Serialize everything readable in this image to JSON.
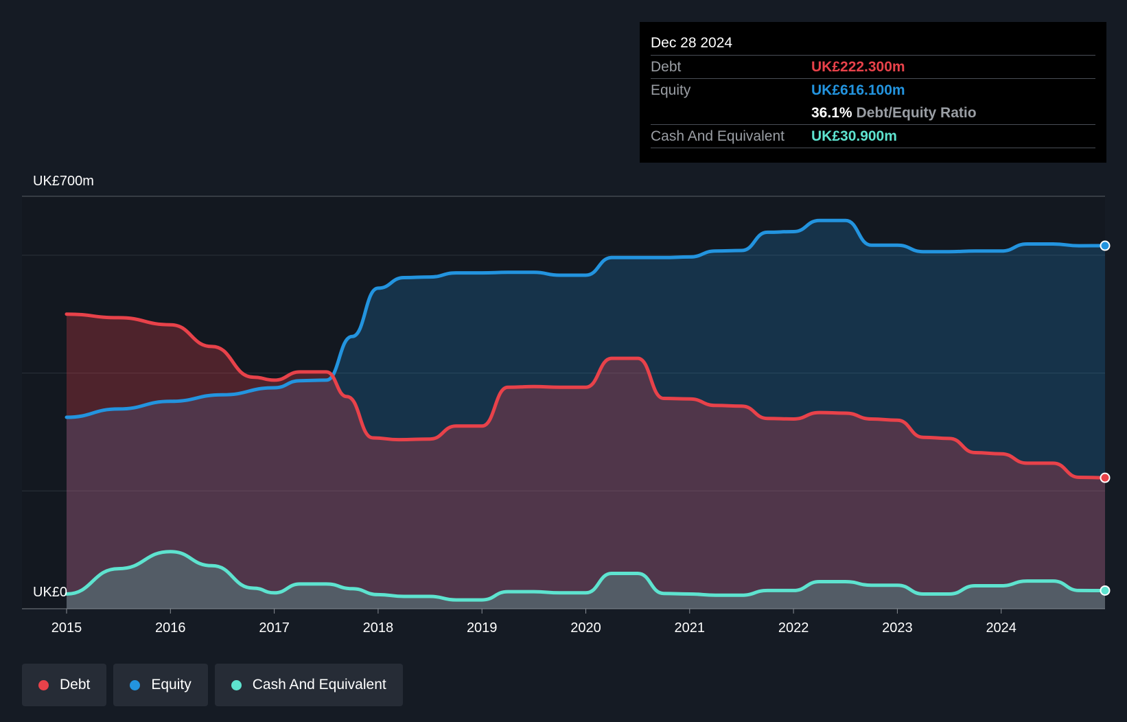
{
  "chart_data": {
    "type": "area",
    "title": "",
    "xlabel": "",
    "ylabel": "",
    "ylim": [
      0,
      700
    ],
    "y_tick_labels": [
      "UK£700m",
      "UK£0"
    ],
    "x_tick_labels": [
      "2015",
      "2016",
      "2017",
      "2018",
      "2019",
      "2020",
      "2021",
      "2022",
      "2023",
      "2024"
    ],
    "x_ticks": [
      2015,
      2016,
      2017,
      2018,
      2019,
      2020,
      2021,
      2022,
      2023,
      2024
    ],
    "xlim": [
      2015,
      2025
    ],
    "grid": true,
    "legend_position": "bottom-left",
    "series": [
      {
        "name": "Debt",
        "color": "#e8424a",
        "x": [
          2015.0,
          2015.5,
          2016.0,
          2016.4,
          2016.8,
          2017.0,
          2017.25,
          2017.5,
          2017.7,
          2017.95,
          2018.2,
          2018.5,
          2018.75,
          2019.0,
          2019.25,
          2019.5,
          2019.75,
          2020.0,
          2020.25,
          2020.5,
          2020.75,
          2021.0,
          2021.25,
          2021.5,
          2021.75,
          2022.0,
          2022.25,
          2022.5,
          2022.75,
          2023.0,
          2023.25,
          2023.5,
          2023.75,
          2024.0,
          2024.25,
          2024.5,
          2024.75,
          2025.0
        ],
        "y": [
          500,
          494,
          482,
          445,
          393,
          388,
          402,
          402,
          360,
          290,
          287,
          288,
          310,
          310,
          376,
          377,
          376,
          376,
          425,
          425,
          357,
          356,
          345,
          344,
          323,
          322,
          333,
          332,
          322,
          320,
          291,
          289,
          265,
          263,
          247,
          247,
          223,
          222.3
        ]
      },
      {
        "name": "Equity",
        "color": "#2394df",
        "x": [
          2015.0,
          2015.5,
          2016.0,
          2016.5,
          2017.0,
          2017.25,
          2017.5,
          2017.75,
          2018.0,
          2018.25,
          2018.5,
          2018.75,
          2019.0,
          2019.25,
          2019.5,
          2019.75,
          2020.0,
          2020.25,
          2020.5,
          2020.75,
          2021.0,
          2021.25,
          2021.5,
          2021.75,
          2022.0,
          2022.25,
          2022.5,
          2022.75,
          2023.0,
          2023.25,
          2023.5,
          2023.75,
          2024.0,
          2024.25,
          2024.5,
          2024.75,
          2025.0
        ],
        "y": [
          325,
          339,
          352,
          363,
          375,
          387,
          388,
          462,
          544,
          562,
          563,
          570,
          570,
          571,
          571,
          566,
          566,
          596,
          596,
          596,
          597,
          607,
          608,
          639,
          640,
          659,
          659,
          617,
          617,
          606,
          606,
          607,
          607,
          619,
          619,
          616,
          616.1
        ]
      },
      {
        "name": "Cash And Equivalent",
        "color": "#5ee3cf",
        "x": [
          2015.0,
          2015.5,
          2016.0,
          2016.4,
          2016.8,
          2017.0,
          2017.25,
          2017.5,
          2017.75,
          2018.0,
          2018.25,
          2018.5,
          2018.75,
          2019.0,
          2019.25,
          2019.5,
          2019.75,
          2020.0,
          2020.25,
          2020.5,
          2020.75,
          2021.0,
          2021.25,
          2021.5,
          2021.75,
          2022.0,
          2022.25,
          2022.5,
          2022.75,
          2023.0,
          2023.25,
          2023.5,
          2023.75,
          2024.0,
          2024.25,
          2024.5,
          2024.75,
          2025.0
        ],
        "y": [
          25,
          68,
          97,
          73,
          35,
          27,
          42,
          42,
          34,
          24,
          21,
          21,
          15,
          15,
          29,
          29,
          27,
          27,
          60,
          60,
          26,
          25,
          23,
          23,
          31,
          31,
          46,
          46,
          40,
          40,
          25,
          25,
          39,
          39,
          47,
          47,
          31,
          30.9
        ]
      }
    ]
  },
  "tooltip": {
    "date": "Dec 28 2024",
    "rows": [
      {
        "label": "Debt",
        "value": "UK£222.300m",
        "color": "#e8424a"
      },
      {
        "label": "Equity",
        "value": "UK£616.100m",
        "color": "#2394df"
      },
      {
        "label": "",
        "ratio_value": "36.1%",
        "ratio_label": "Debt/Equity Ratio"
      },
      {
        "label": "Cash And Equivalent",
        "value": "UK£30.900m",
        "color": "#5ee3cf"
      }
    ]
  },
  "legend": {
    "items": [
      {
        "label": "Debt",
        "color": "#e8424a"
      },
      {
        "label": "Equity",
        "color": "#2394df"
      },
      {
        "label": "Cash And Equivalent",
        "color": "#5ee3cf"
      }
    ]
  }
}
